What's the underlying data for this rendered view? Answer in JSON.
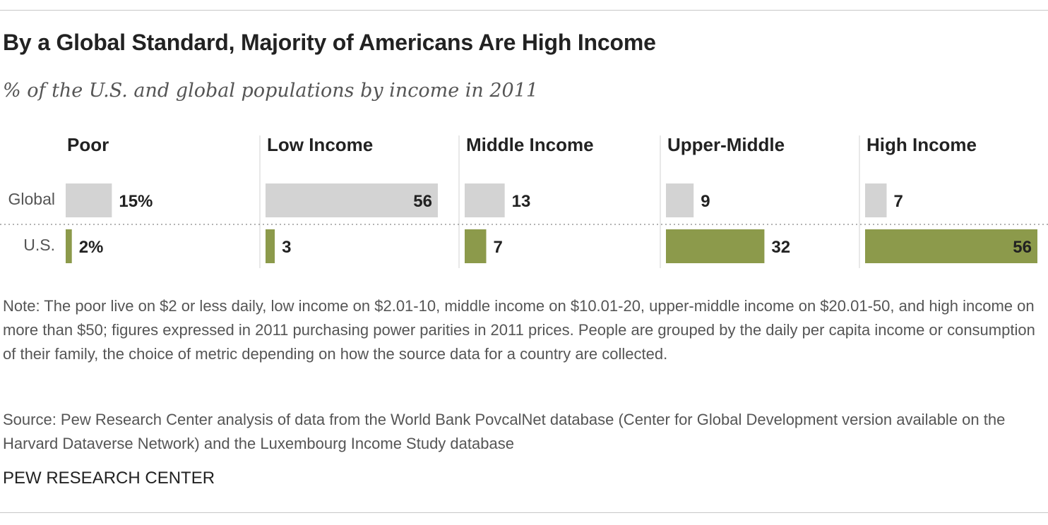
{
  "title": "By a Global Standard, Majority of Americans Are High Income",
  "subtitle": "% of the U.S. and global populations by income in 2011",
  "chart_data": {
    "type": "bar",
    "categories": [
      "Poor",
      "Low Income",
      "Middle Income",
      "Upper-Middle",
      "High Income"
    ],
    "series": [
      {
        "name": "Global",
        "values": [
          15,
          56,
          13,
          9,
          7
        ],
        "labels": [
          "15%",
          "56",
          "13",
          "9",
          "7"
        ],
        "color": "#d3d3d3"
      },
      {
        "name": "U.S.",
        "values": [
          2,
          3,
          7,
          32,
          56
        ],
        "labels": [
          "2%",
          "3",
          "7",
          "32",
          "56"
        ],
        "color": "#8c9a4b"
      }
    ],
    "xlim": [
      0,
      56
    ]
  },
  "note": "Note: The poor live on $2 or less daily, low income on $2.01-10, middle income on $10.01-20, upper-middle income on $20.01-50, and high income on more than $50; figures expressed in 2011 purchasing power parities in 2011 prices. People are grouped by the daily per capita income or consumption of their family, the choice of metric depending on how the source data for a country are collected.",
  "source": "Source: Pew Research Center analysis of data from the World Bank PovcalNet database (Center for Global Development version available on the Harvard Dataverse Network) and the Luxembourg Income Study database",
  "credit": "PEW RESEARCH CENTER"
}
